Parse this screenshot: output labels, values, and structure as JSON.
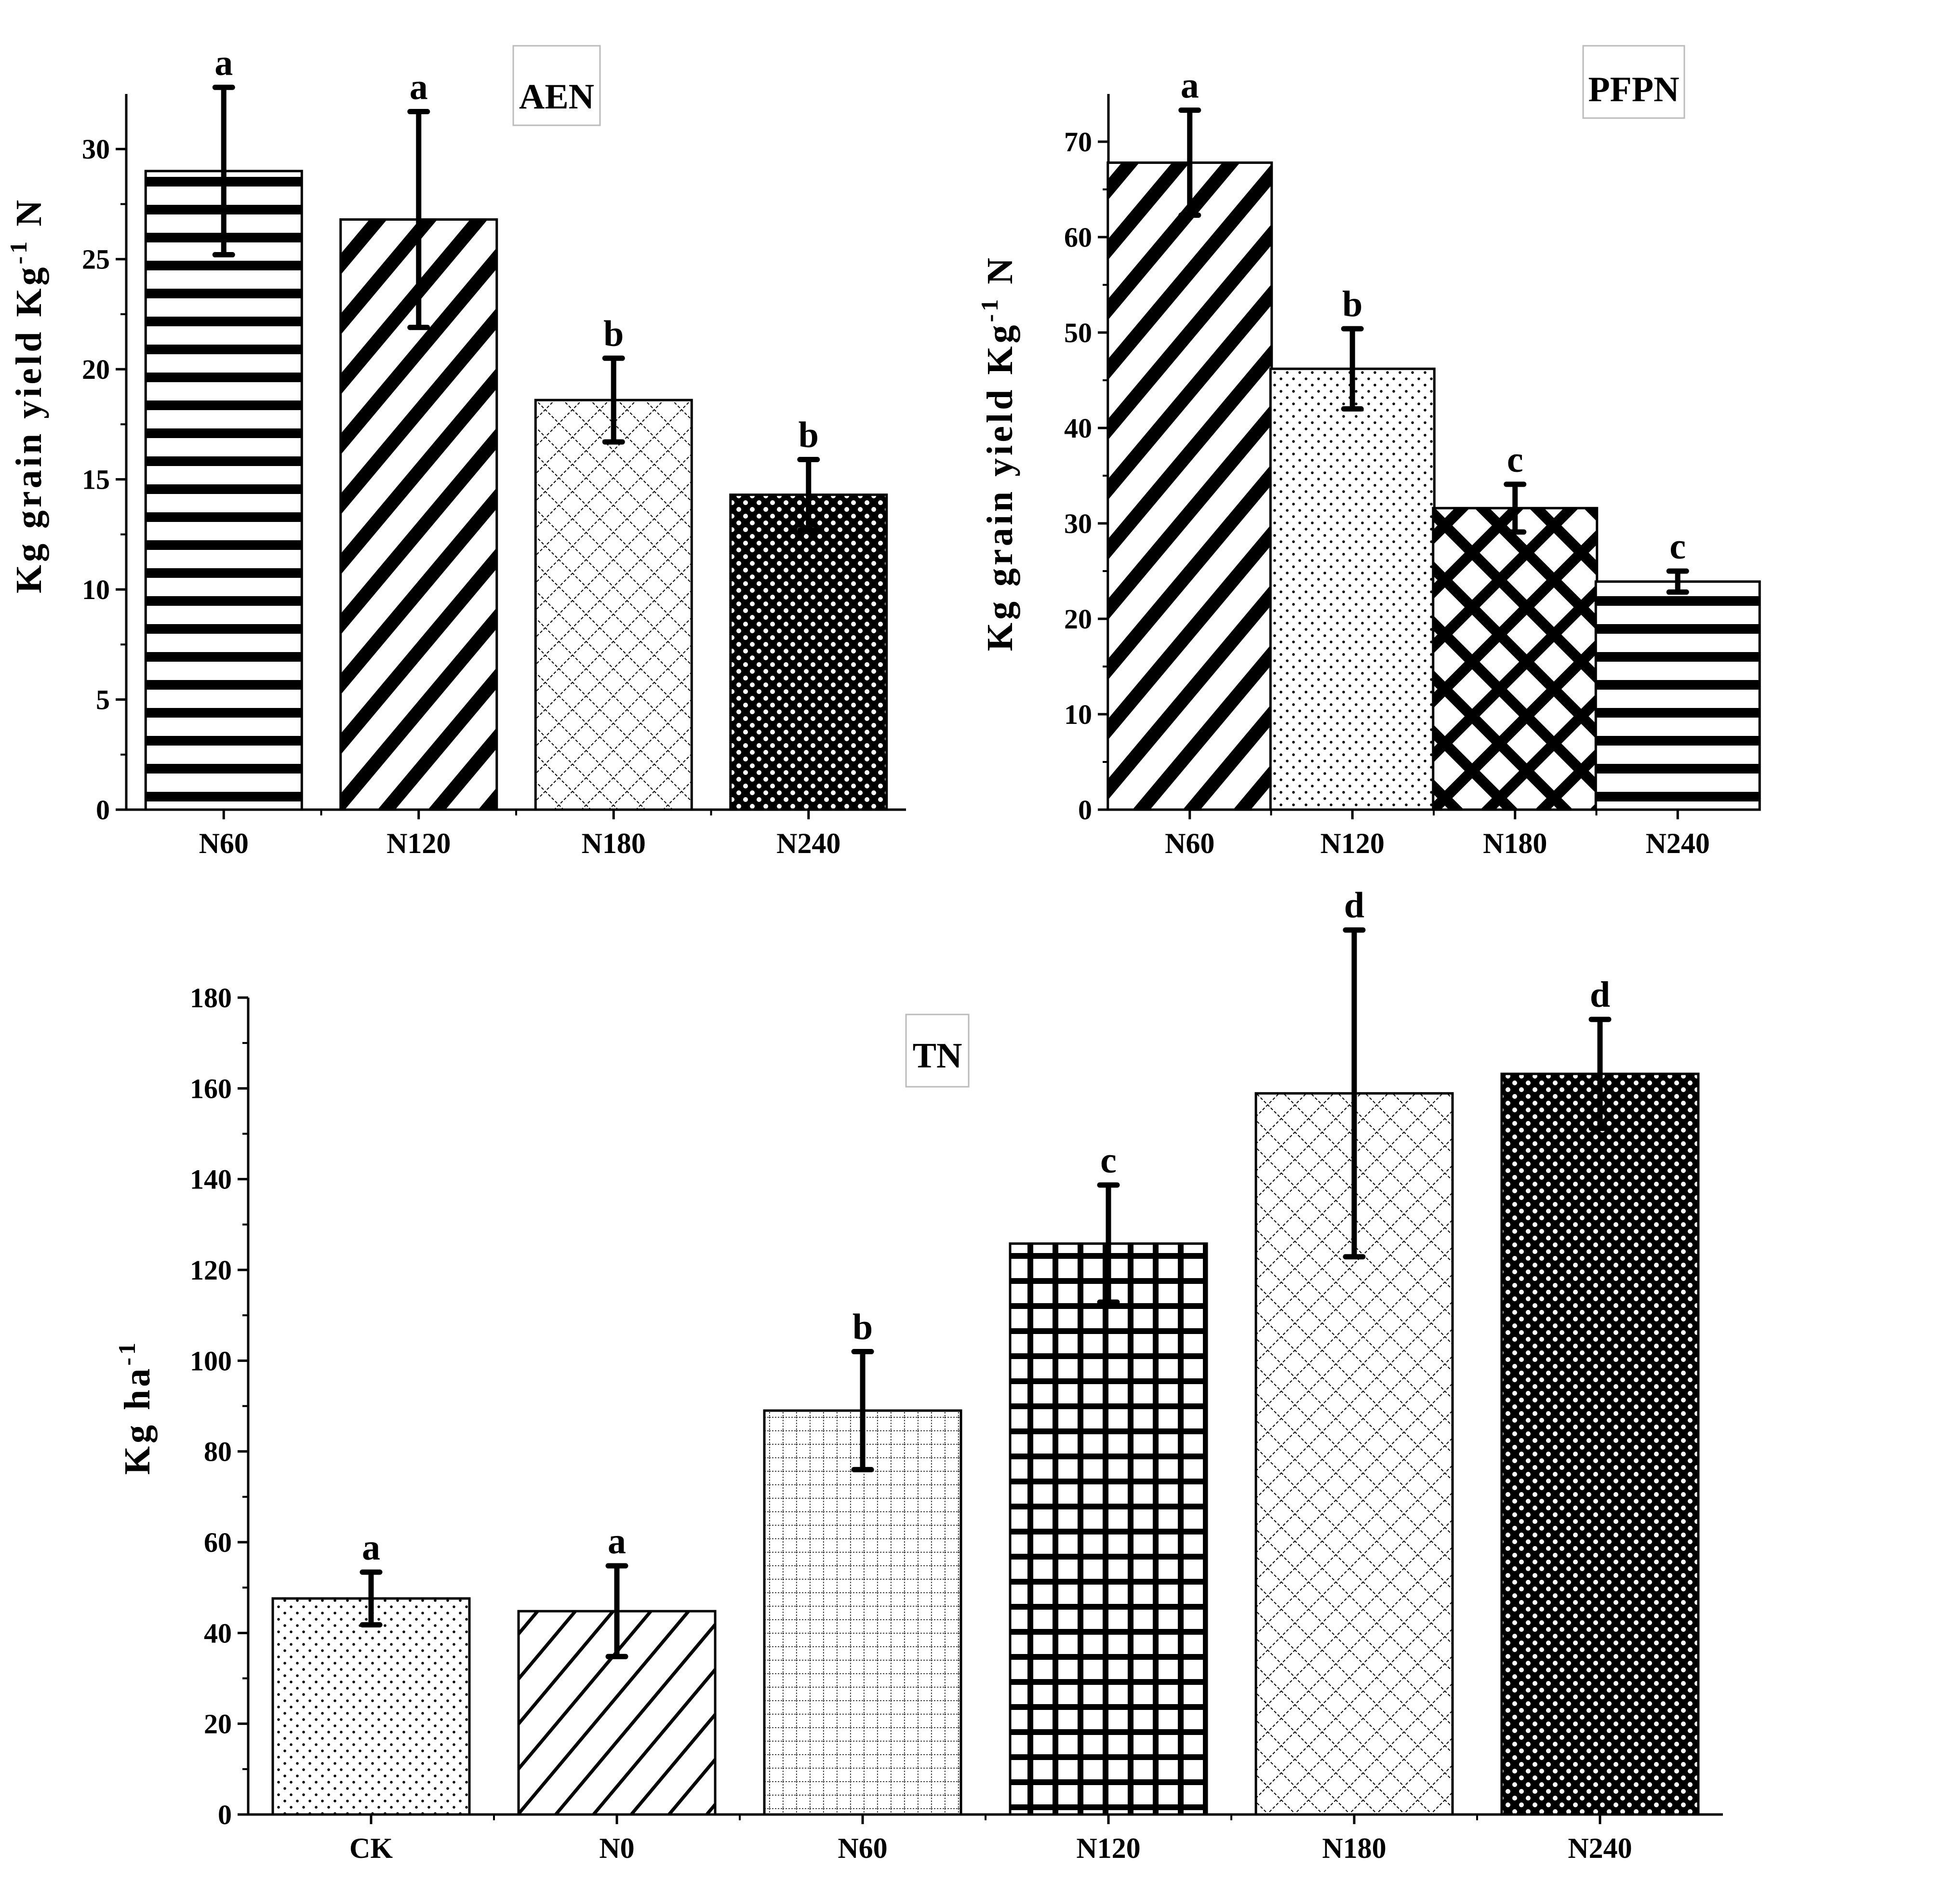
{
  "chart_data": [
    {
      "id": "aen",
      "type": "bar",
      "title": "AEN",
      "ylabel": {
        "main": "Kg grain yield Kg",
        "sup": "-1",
        "tail": " N"
      },
      "xlabel": "",
      "ylim": [
        0,
        32.5
      ],
      "yticks": [
        0,
        5,
        10,
        15,
        20,
        25,
        30
      ],
      "categories": [
        "N60",
        "N120",
        "N180",
        "N240"
      ],
      "values": [
        29.0,
        26.8,
        18.6,
        14.3
      ],
      "errors": [
        3.8,
        4.9,
        1.9,
        1.6
      ],
      "letters": [
        "a",
        "a",
        "b",
        "b"
      ],
      "patterns": [
        "hstripe",
        "diag",
        "lattice",
        "dots"
      ]
    },
    {
      "id": "pfpn",
      "type": "bar",
      "title": "PFPN",
      "ylabel": {
        "main": "Kg grain yield Kg",
        "sup": "-1",
        "tail": " N"
      },
      "xlabel": "",
      "ylim": [
        0,
        75
      ],
      "yticks": [
        0,
        10,
        20,
        30,
        40,
        50,
        60,
        70
      ],
      "categories": [
        "N60",
        "N120",
        "N180",
        "N240"
      ],
      "values": [
        67.8,
        46.2,
        31.6,
        23.9
      ],
      "errors": [
        5.5,
        4.2,
        2.5,
        1.1
      ],
      "letters": [
        "a",
        "b",
        "c",
        "c"
      ],
      "patterns": [
        "diag",
        "finedots",
        "crosshatch",
        "hstripe"
      ]
    },
    {
      "id": "tn",
      "type": "bar",
      "title": "TN",
      "ylabel": {
        "main": "Kg ha",
        "sup": "-1",
        "tail": ""
      },
      "xlabel": "",
      "ylim": [
        0,
        180
      ],
      "yticks": [
        0,
        20,
        40,
        60,
        80,
        100,
        120,
        140,
        160,
        180
      ],
      "categories": [
        "CK",
        "N0",
        "N60",
        "N120",
        "N180",
        "N240"
      ],
      "values": [
        47.6,
        44.8,
        89.0,
        125.8,
        158.9,
        163.2
      ],
      "errors": [
        5.8,
        10.0,
        13.0,
        12.9,
        36.0,
        12.0
      ],
      "letters": [
        "a",
        "a",
        "b",
        "c",
        "d",
        "d"
      ],
      "patterns": [
        "finedots",
        "thindiag",
        "finegrid",
        "boldgrid",
        "lattice",
        "dots"
      ]
    }
  ]
}
